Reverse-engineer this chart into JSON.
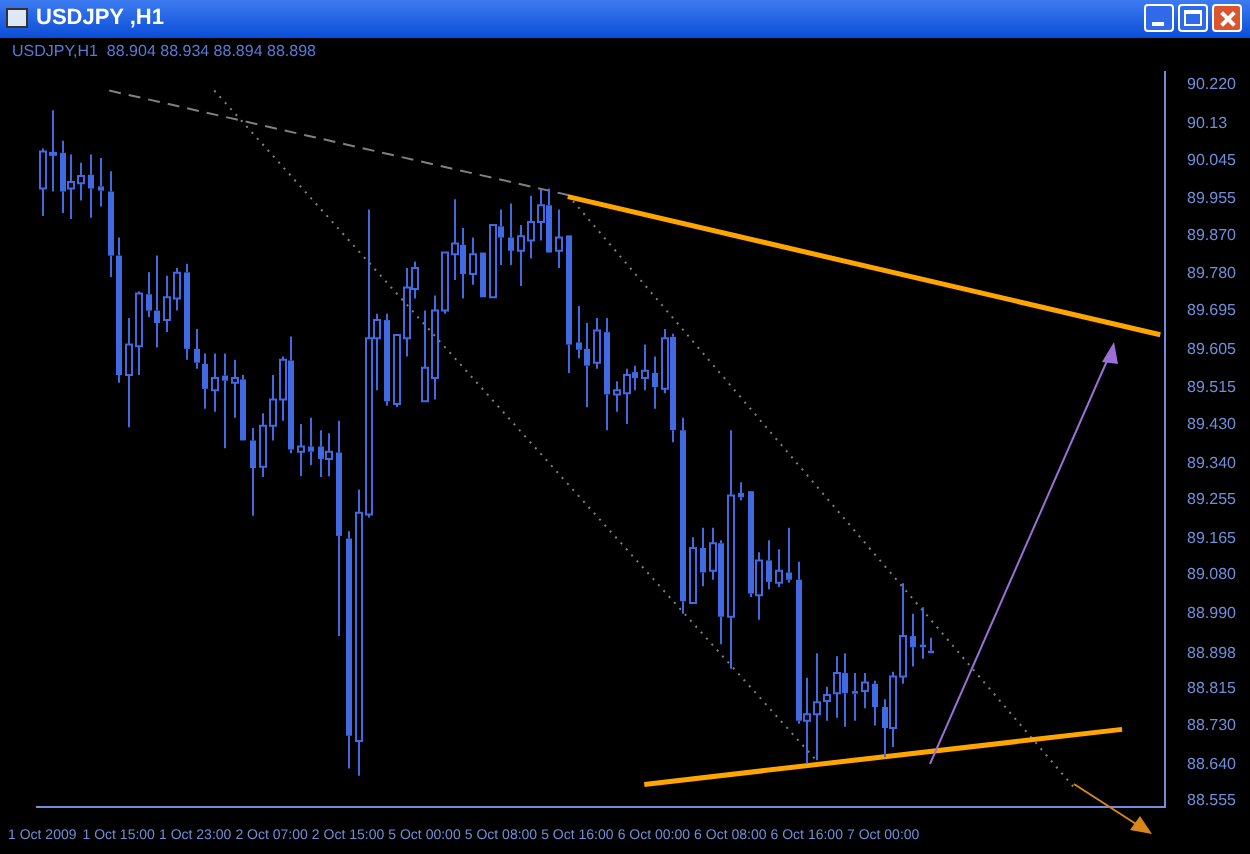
{
  "chart_data": {
    "type": "candlestick",
    "title": "USDJPY ,H1",
    "subtitle": "USDJPY,H1  88.904 88.934 88.894 88.898",
    "categories": [
      "1 Oct 2009",
      null,
      null,
      null,
      null,
      null,
      null,
      null,
      "1 Oct 15:00",
      null,
      null,
      null,
      null,
      null,
      null,
      null,
      "1 Oct 23:00",
      null,
      null,
      null,
      null,
      null,
      null,
      null,
      "2 Oct 07:00",
      null,
      null,
      null,
      null,
      null,
      null,
      null,
      "2 Oct 15:00",
      null,
      null,
      null,
      null,
      null,
      null,
      null,
      "5 Oct 00:00",
      null,
      null,
      null,
      null,
      null,
      null,
      null,
      "5 Oct 08:00",
      null,
      null,
      null,
      null,
      null,
      null,
      null,
      "5 Oct 16:00",
      null,
      null,
      null,
      null,
      null,
      null,
      null,
      "6 Oct 00:00",
      null,
      null,
      null,
      null,
      null,
      null,
      null,
      "6 Oct 08:00",
      null,
      null,
      null,
      null,
      null,
      null,
      null,
      "6 Oct 16:00",
      null,
      null,
      null,
      null,
      null,
      null,
      null,
      "7 Oct 00:00",
      null,
      null,
      null,
      null,
      null,
      null,
      null,
      null,
      null,
      null,
      null,
      null,
      null,
      null,
      null,
      null,
      null,
      null,
      null,
      null,
      null,
      null,
      null,
      null,
      null,
      null,
      null,
      null,
      null
    ],
    "series": [
      {
        "type": "candlestick",
        "color": "#4169e1",
        "ohlc": [
          [
            89.979,
            90.072,
            89.915,
            90.065
          ],
          [
            90.059,
            90.161,
            89.972,
            90.062
          ],
          [
            90.062,
            90.09,
            89.922,
            89.972
          ],
          [
            89.979,
            90.058,
            89.908,
            89.994
          ],
          [
            89.991,
            90.039,
            89.951,
            90.008
          ],
          [
            90.011,
            90.058,
            89.911,
            89.979
          ],
          [
            89.984,
            90.05,
            89.937,
            89.974
          ],
          [
            89.972,
            90.019,
            89.773,
            89.823
          ],
          [
            89.823,
            89.865,
            89.527,
            89.545
          ],
          [
            89.545,
            89.678,
            89.424,
            89.616
          ],
          [
            89.612,
            89.74,
            89.545,
            89.735
          ],
          [
            89.733,
            89.784,
            89.68,
            89.695
          ],
          [
            89.695,
            89.823,
            89.609,
            89.666
          ],
          [
            89.673,
            89.776,
            89.645,
            89.726
          ],
          [
            89.723,
            89.794,
            89.695,
            89.783
          ],
          [
            89.784,
            89.804,
            89.581,
            89.606
          ],
          [
            89.606,
            89.652,
            89.56,
            89.574
          ],
          [
            89.571,
            89.595,
            89.467,
            89.513
          ],
          [
            89.51,
            89.595,
            89.46,
            89.538
          ],
          [
            89.544,
            89.595,
            89.375,
            89.532
          ],
          [
            89.527,
            89.581,
            89.446,
            89.538
          ],
          [
            89.535,
            89.545,
            89.389,
            89.393
          ],
          [
            89.393,
            89.422,
            89.218,
            89.329
          ],
          [
            89.332,
            89.456,
            89.308,
            89.427
          ],
          [
            89.427,
            89.545,
            89.393,
            89.488
          ],
          [
            89.488,
            89.588,
            89.439,
            89.581
          ],
          [
            89.579,
            89.635,
            89.363,
            89.372
          ],
          [
            89.367,
            89.431,
            89.31,
            89.379
          ],
          [
            89.379,
            89.446,
            89.336,
            89.367
          ],
          [
            89.379,
            89.417,
            89.308,
            89.35
          ],
          [
            89.35,
            89.41,
            89.31,
            89.367
          ],
          [
            89.365,
            89.439,
            88.938,
            89.171
          ],
          [
            89.165,
            89.182,
            88.63,
            88.706
          ],
          [
            88.694,
            89.279,
            88.613,
            89.225
          ],
          [
            89.221,
            89.93,
            89.214,
            89.631
          ],
          [
            89.631,
            89.688,
            89.51,
            89.673
          ],
          [
            89.673,
            89.688,
            89.474,
            89.484
          ],
          [
            89.478,
            89.641,
            89.471,
            89.638
          ],
          [
            89.631,
            89.794,
            89.588,
            89.749
          ],
          [
            89.745,
            89.809,
            89.723,
            89.794
          ],
          [
            89.484,
            89.695,
            89.481,
            89.562
          ],
          [
            89.538,
            89.73,
            89.488,
            89.695
          ],
          [
            89.695,
            89.83,
            89.688,
            89.83
          ],
          [
            89.826,
            89.954,
            89.766,
            89.851
          ],
          [
            89.848,
            89.887,
            89.723,
            89.78
          ],
          [
            89.78,
            89.865,
            89.755,
            89.826
          ],
          [
            89.83,
            89.834,
            89.723,
            89.726
          ],
          [
            89.726,
            89.894,
            89.723,
            89.894
          ],
          [
            89.891,
            89.93,
            89.801,
            89.865
          ],
          [
            89.865,
            89.944,
            89.801,
            89.834
          ],
          [
            89.834,
            89.894,
            89.752,
            89.868
          ],
          [
            89.858,
            89.962,
            89.816,
            89.901
          ],
          [
            89.901,
            89.976,
            89.858,
            89.94
          ],
          [
            89.94,
            89.979,
            89.826,
            89.83
          ],
          [
            89.834,
            89.93,
            89.794,
            89.865
          ],
          [
            89.87,
            89.873,
            89.55,
            89.616
          ],
          [
            89.621,
            89.706,
            89.584,
            89.604
          ],
          [
            89.606,
            89.666,
            89.47,
            89.567
          ],
          [
            89.574,
            89.678,
            89.56,
            89.649
          ],
          [
            89.645,
            89.678,
            89.417,
            89.5
          ],
          [
            89.5,
            89.531,
            89.46,
            89.51
          ],
          [
            89.503,
            89.56,
            89.431,
            89.545
          ],
          [
            89.552,
            89.567,
            89.51,
            89.538
          ],
          [
            89.538,
            89.616,
            89.51,
            89.555
          ],
          [
            89.55,
            89.588,
            89.467,
            89.517
          ],
          [
            89.513,
            89.652,
            89.503,
            89.631
          ],
          [
            89.634,
            89.641,
            89.389,
            89.417
          ],
          [
            89.417,
            89.446,
            88.99,
            89.019
          ],
          [
            89.015,
            89.168,
            89.012,
            89.143
          ],
          [
            89.143,
            89.19,
            89.054,
            89.086
          ],
          [
            89.09,
            89.19,
            89.069,
            89.154
          ],
          [
            89.154,
            89.161,
            88.919,
            88.983
          ],
          [
            88.983,
            89.417,
            88.862,
            89.265
          ],
          [
            89.271,
            89.296,
            89.254,
            89.261
          ],
          [
            89.275,
            89.275,
            89.029,
            89.037
          ],
          [
            89.033,
            89.133,
            88.976,
            89.114
          ],
          [
            89.114,
            89.161,
            89.047,
            89.064
          ],
          [
            89.062,
            89.14,
            89.052,
            89.09
          ],
          [
            89.086,
            89.19,
            89.062,
            89.069
          ],
          [
            89.069,
            89.111,
            88.734,
            88.741
          ],
          [
            88.741,
            88.841,
            88.642,
            88.756
          ],
          [
            88.756,
            88.898,
            88.649,
            88.784
          ],
          [
            88.787,
            88.82,
            88.741,
            88.801
          ],
          [
            88.805,
            88.891,
            88.748,
            88.852
          ],
          [
            88.852,
            88.898,
            88.727,
            88.805
          ],
          [
            88.81,
            88.852,
            88.741,
            88.804
          ],
          [
            88.81,
            88.852,
            88.77,
            88.83
          ],
          [
            88.827,
            88.834,
            88.73,
            88.773
          ],
          [
            88.773,
            88.791,
            88.656,
            88.724
          ],
          [
            88.724,
            88.855,
            88.68,
            88.844
          ],
          [
            88.844,
            89.061,
            88.827,
            88.938
          ],
          [
            88.938,
            88.99,
            88.867,
            88.912
          ],
          [
            88.918,
            89.005,
            88.885,
            88.912
          ],
          [
            88.904,
            88.934,
            88.894,
            88.898
          ],
          null,
          null,
          null,
          null,
          null,
          null,
          null,
          null,
          null,
          null,
          null,
          null,
          null,
          null,
          null,
          null,
          null,
          null,
          null,
          null,
          null,
          null,
          null,
          null
        ]
      },
      {
        "type": "line",
        "color": "#ffa500",
        "line_style": "solid",
        "values": [
          null,
          null,
          null,
          null,
          null,
          null,
          null,
          null,
          null,
          null,
          null,
          null,
          null,
          null,
          null,
          null,
          null,
          null,
          null,
          null,
          null,
          null,
          null,
          null,
          null,
          null,
          null,
          null,
          null,
          null,
          null,
          null,
          null,
          null,
          null,
          null,
          null,
          null,
          null,
          null,
          null,
          null,
          null,
          null,
          null,
          null,
          null,
          null,
          null,
          null,
          null,
          null,
          null,
          null,
          null,
          89.96,
          null,
          null,
          null,
          null,
          null,
          null,
          null,
          null,
          null,
          null,
          null,
          null,
          null,
          null,
          null,
          null,
          null,
          null,
          null,
          null,
          null,
          null,
          null,
          null,
          null,
          null,
          null,
          null,
          null,
          null,
          null,
          null,
          null,
          null,
          null,
          null,
          null,
          null,
          null,
          null,
          null,
          null,
          null,
          null,
          null,
          null,
          null,
          null,
          null,
          null,
          null,
          null,
          null,
          null,
          null,
          null,
          null,
          null,
          null,
          null,
          null,
          89.639
        ]
      },
      {
        "type": "line",
        "color": "#ffa500",
        "line_style": "solid",
        "values": [
          null,
          null,
          null,
          null,
          null,
          null,
          null,
          null,
          null,
          null,
          null,
          null,
          null,
          null,
          null,
          null,
          null,
          null,
          null,
          null,
          null,
          null,
          null,
          null,
          null,
          null,
          null,
          null,
          null,
          null,
          null,
          null,
          null,
          null,
          null,
          null,
          null,
          null,
          null,
          null,
          null,
          null,
          null,
          null,
          null,
          null,
          null,
          null,
          null,
          null,
          null,
          null,
          null,
          null,
          null,
          null,
          null,
          null,
          null,
          null,
          null,
          null,
          null,
          88.593,
          null,
          null,
          null,
          null,
          null,
          null,
          null,
          null,
          null,
          null,
          null,
          null,
          null,
          null,
          null,
          null,
          null,
          null,
          null,
          null,
          null,
          null,
          null,
          null,
          null,
          null,
          null,
          null,
          null,
          null,
          null,
          null,
          null,
          null,
          null,
          null,
          null,
          null,
          null,
          null,
          null,
          null,
          null,
          null,
          null,
          null,
          null,
          null,
          null,
          88.721,
          null,
          null,
          null,
          null
        ]
      },
      {
        "type": "line",
        "color": "#808080",
        "line_style": "dashed",
        "values": [
          null,
          null,
          null,
          null,
          null,
          null,
          null,
          90.207,
          null,
          null,
          null,
          null,
          null,
          null,
          null,
          null,
          null,
          null,
          null,
          null,
          null,
          null,
          null,
          null,
          null,
          null,
          null,
          null,
          null,
          null,
          null,
          null,
          null,
          null,
          null,
          null,
          null,
          null,
          null,
          null,
          null,
          null,
          null,
          null,
          null,
          null,
          null,
          null,
          null,
          null,
          null,
          null,
          null,
          null,
          null,
          89.964,
          null,
          null,
          null,
          null,
          null,
          null,
          null,
          null,
          null,
          null,
          null,
          null,
          null,
          null,
          null,
          null,
          null,
          null,
          null,
          null,
          null,
          null,
          null,
          null,
          null,
          null,
          null,
          null,
          null,
          null,
          null,
          null,
          null,
          null,
          null,
          null,
          null,
          null,
          null,
          null,
          null,
          null,
          null,
          null,
          null,
          null,
          null,
          null,
          null,
          null,
          null,
          null,
          null,
          null,
          null,
          null,
          null,
          null,
          null,
          null,
          null,
          null
        ]
      },
      {
        "type": "line",
        "color": "#808080",
        "line_style": "dotted",
        "values": [
          null,
          null,
          null,
          null,
          null,
          null,
          null,
          null,
          null,
          null,
          null,
          null,
          null,
          null,
          null,
          null,
          null,
          null,
          90.207,
          null,
          null,
          null,
          null,
          null,
          null,
          null,
          null,
          null,
          null,
          null,
          null,
          null,
          null,
          null,
          null,
          null,
          null,
          null,
          null,
          null,
          null,
          null,
          null,
          null,
          null,
          null,
          null,
          null,
          null,
          null,
          null,
          null,
          null,
          null,
          null,
          null,
          null,
          null,
          null,
          null,
          null,
          null,
          null,
          null,
          null,
          null,
          null,
          null,
          null,
          null,
          null,
          null,
          null,
          null,
          null,
          null,
          null,
          null,
          null,
          null,
          null,
          88.649,
          null,
          null,
          null,
          null,
          null,
          null,
          null,
          null,
          null,
          null,
          null,
          null,
          null,
          null,
          null,
          null,
          null,
          null,
          null,
          null,
          null,
          null,
          null,
          null,
          null,
          null,
          null,
          null,
          null,
          null,
          null,
          null,
          null,
          null,
          null,
          null
        ]
      },
      {
        "type": "line",
        "color": "#808080",
        "line_style": "dotted",
        "values": [
          null,
          null,
          null,
          null,
          null,
          null,
          null,
          null,
          null,
          null,
          null,
          null,
          null,
          null,
          null,
          null,
          null,
          null,
          null,
          null,
          null,
          null,
          null,
          null,
          null,
          null,
          null,
          null,
          null,
          null,
          null,
          null,
          null,
          null,
          null,
          null,
          null,
          null,
          null,
          null,
          null,
          null,
          null,
          null,
          null,
          null,
          null,
          null,
          null,
          null,
          null,
          null,
          null,
          null,
          null,
          89.964,
          null,
          null,
          null,
          null,
          null,
          null,
          null,
          null,
          null,
          null,
          null,
          null,
          null,
          null,
          null,
          null,
          null,
          null,
          null,
          null,
          null,
          null,
          null,
          null,
          null,
          null,
          null,
          null,
          null,
          null,
          null,
          null,
          null,
          null,
          null,
          null,
          null,
          null,
          null,
          null,
          null,
          null,
          null,
          null,
          null,
          null,
          null,
          null,
          null,
          null,
          null,
          null,
          88.585,
          null,
          null,
          null,
          null,
          null,
          null,
          null,
          null,
          null
        ]
      }
    ],
    "ylim": [
      88.54,
      90.25
    ],
    "yticks": [
      {
        "value": 90.22,
        "label": "90.220"
      },
      90.13,
      90.045,
      89.955,
      {
        "value": 89.87,
        "label": "89.870"
      },
      {
        "value": 89.78,
        "label": "89.780"
      },
      89.695,
      89.605,
      89.515,
      {
        "value": 89.43,
        "label": "89.430"
      },
      {
        "value": 89.34,
        "label": "89.340"
      },
      89.255,
      89.165,
      {
        "value": 89.08,
        "label": "89.080"
      },
      {
        "value": 88.99,
        "label": "88.990"
      },
      88.898,
      88.815,
      {
        "value": 88.73,
        "label": "88.730"
      },
      {
        "value": 88.64,
        "label": "88.640"
      },
      88.555
    ],
    "grid": false,
    "legend": false
  }
}
